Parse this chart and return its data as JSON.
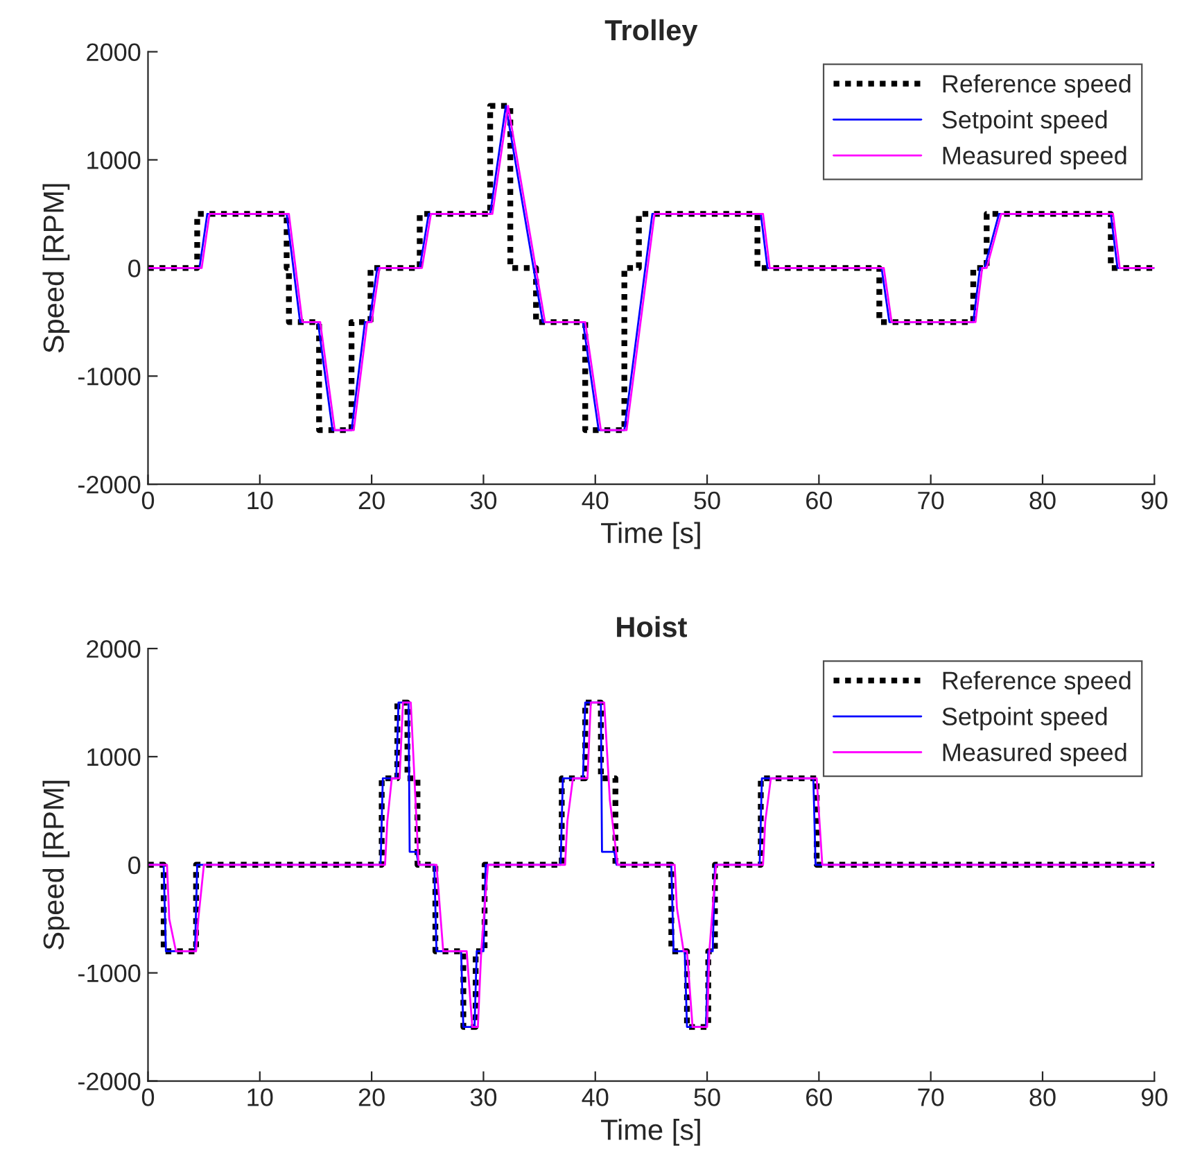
{
  "chart_data": [
    {
      "type": "line",
      "title": "Trolley",
      "xlabel": "Time [s]",
      "ylabel": "Speed [RPM]",
      "xlim": [
        0,
        90
      ],
      "xticks": [
        0,
        10,
        20,
        30,
        40,
        50,
        60,
        70,
        80,
        90
      ],
      "ylim": [
        -2000,
        2000
      ],
      "yticks": [
        -2000,
        -1000,
        0,
        1000,
        2000
      ],
      "grid": false,
      "legend": "top right",
      "series": [
        {
          "name": "Reference speed",
          "color": "#000000",
          "line_style": "dotted",
          "x": [
            0,
            4.4,
            4.4,
            12.4,
            12.4,
            12.6,
            12.6,
            15.3,
            15.3,
            18.2,
            18.2,
            19.9,
            19.9,
            24.3,
            24.3,
            30.6,
            30.6,
            32.4,
            32.4,
            34.7,
            34.7,
            39.1,
            39.1,
            42.6,
            42.6,
            43.9,
            43.9,
            54.5,
            54.5,
            65.4,
            65.4,
            73.8,
            73.8,
            75.0,
            75.0,
            86.1,
            86.1,
            90
          ],
          "values": [
            0,
            0,
            500,
            500,
            0,
            0,
            -500,
            -500,
            -1500,
            -1500,
            -500,
            -500,
            0,
            0,
            500,
            500,
            1500,
            1500,
            0,
            0,
            -500,
            -500,
            -1500,
            -1500,
            0,
            0,
            500,
            500,
            0,
            0,
            -500,
            -500,
            0,
            0,
            500,
            500,
            0,
            0
          ]
        },
        {
          "name": "Setpoint speed",
          "color": "#0000ff",
          "line_style": "solid",
          "x": [
            0,
            4.6,
            5.3,
            12.4,
            13.6,
            15.2,
            16.5,
            18.2,
            19.4,
            19.8,
            20.5,
            24.3,
            25.1,
            30.6,
            32.0,
            35.3,
            38.9,
            40.3,
            42.6,
            45.1,
            54.8,
            55.4,
            65.6,
            66.3,
            73.8,
            74.4,
            74.8,
            76.1,
            86.1,
            86.7,
            90
          ],
          "values": [
            0,
            0,
            500,
            500,
            -500,
            -500,
            -1500,
            -1500,
            -500,
            -500,
            0,
            0,
            500,
            500,
            1500,
            -500,
            -500,
            -1500,
            -1500,
            500,
            500,
            0,
            0,
            -500,
            -500,
            0,
            0,
            500,
            500,
            0,
            0
          ]
        },
        {
          "name": "Measured speed",
          "color": "#ff00ff",
          "line_style": "solid",
          "x": [
            0,
            4.8,
            5.5,
            12.6,
            13.8,
            15.4,
            16.7,
            18.4,
            19.6,
            20.0,
            20.7,
            24.5,
            25.3,
            30.8,
            32.2,
            35.5,
            39.1,
            40.5,
            42.8,
            45.3,
            55.0,
            55.6,
            65.8,
            66.5,
            74.0,
            74.6,
            75.0,
            76.3,
            86.3,
            86.9,
            90
          ],
          "values": [
            0,
            0,
            500,
            500,
            -500,
            -500,
            -1500,
            -1500,
            -500,
            -500,
            0,
            0,
            500,
            500,
            1500,
            -500,
            -500,
            -1500,
            -1500,
            500,
            500,
            0,
            0,
            -500,
            -500,
            0,
            0,
            500,
            500,
            0,
            0
          ]
        }
      ]
    },
    {
      "type": "line",
      "title": "Hoist",
      "xlabel": "Time [s]",
      "ylabel": "Speed [RPM]",
      "xlim": [
        0,
        90
      ],
      "xticks": [
        0,
        10,
        20,
        30,
        40,
        50,
        60,
        70,
        80,
        90
      ],
      "ylim": [
        -2000,
        2000
      ],
      "yticks": [
        -2000,
        -1000,
        0,
        1000,
        2000
      ],
      "grid": false,
      "legend": "top right",
      "series": [
        {
          "name": "Reference speed",
          "color": "#000000",
          "line_style": "dotted",
          "x": [
            0,
            1.4,
            1.4,
            4.3,
            4.3,
            20.9,
            20.9,
            22.3,
            22.3,
            23.2,
            23.2,
            24.1,
            24.1,
            25.7,
            25.7,
            28.2,
            28.2,
            29.3,
            29.3,
            30.1,
            30.1,
            37.0,
            37.0,
            39.1,
            39.1,
            40.5,
            40.5,
            41.8,
            41.8,
            46.8,
            46.8,
            48.2,
            48.2,
            50.1,
            50.1,
            50.7,
            50.7,
            54.8,
            54.8,
            59.8,
            59.8,
            90
          ],
          "values": [
            0,
            0,
            -800,
            -800,
            0,
            0,
            800,
            800,
            1500,
            1500,
            800,
            800,
            0,
            0,
            -800,
            -800,
            -1500,
            -1500,
            -800,
            -800,
            0,
            0,
            800,
            800,
            1500,
            1500,
            800,
            800,
            0,
            0,
            -800,
            -800,
            -1500,
            -1500,
            -800,
            -800,
            0,
            0,
            800,
            800,
            0,
            0
          ]
        },
        {
          "name": "Setpoint speed",
          "color": "#0000ff",
          "line_style": "solid",
          "x": [
            0,
            1.4,
            1.6,
            4.2,
            4.4,
            20.8,
            21.0,
            22.2,
            22.4,
            23.3,
            23.4,
            24.0,
            24.2,
            25.6,
            25.8,
            28.0,
            28.2,
            29.2,
            29.4,
            30.0,
            30.2,
            36.9,
            37.1,
            38.9,
            39.1,
            40.5,
            40.6,
            41.7,
            41.9,
            46.8,
            47.0,
            48.0,
            48.2,
            49.9,
            50.1,
            50.5,
            50.7,
            54.7,
            54.9,
            59.5,
            59.7,
            90
          ],
          "values": [
            0,
            0,
            -800,
            -800,
            0,
            0,
            800,
            800,
            1500,
            1500,
            120,
            120,
            0,
            0,
            -800,
            -800,
            -1500,
            -1500,
            -800,
            -800,
            0,
            0,
            800,
            800,
            1500,
            1500,
            120,
            120,
            0,
            0,
            -800,
            -800,
            -1500,
            -1500,
            -800,
            -800,
            0,
            0,
            800,
            800,
            0,
            0
          ]
        },
        {
          "name": "Measured speed",
          "color": "#ff00ff",
          "line_style": "solid",
          "x": [
            0,
            1.7,
            1.9,
            2.5,
            4.3,
            4.5,
            5.0,
            21.2,
            21.4,
            21.8,
            22.5,
            22.8,
            23.5,
            24.2,
            25.8,
            26.4,
            28.5,
            29.0,
            29.5,
            29.8,
            30.4,
            37.3,
            37.5,
            38.0,
            39.3,
            39.6,
            40.8,
            41.3,
            42.0,
            47.1,
            47.3,
            47.9,
            48.2,
            48.7,
            50.0,
            50.2,
            50.8,
            55.0,
            55.2,
            55.7,
            59.8,
            60.3,
            90
          ],
          "values": [
            0,
            0,
            -500,
            -800,
            -800,
            -500,
            0,
            0,
            400,
            800,
            800,
            1500,
            1500,
            0,
            0,
            -800,
            -800,
            -1500,
            -1500,
            -800,
            0,
            0,
            400,
            800,
            800,
            1500,
            1500,
            600,
            0,
            0,
            -400,
            -800,
            -800,
            -1500,
            -1500,
            -800,
            0,
            0,
            400,
            800,
            800,
            0,
            0
          ]
        }
      ]
    }
  ]
}
